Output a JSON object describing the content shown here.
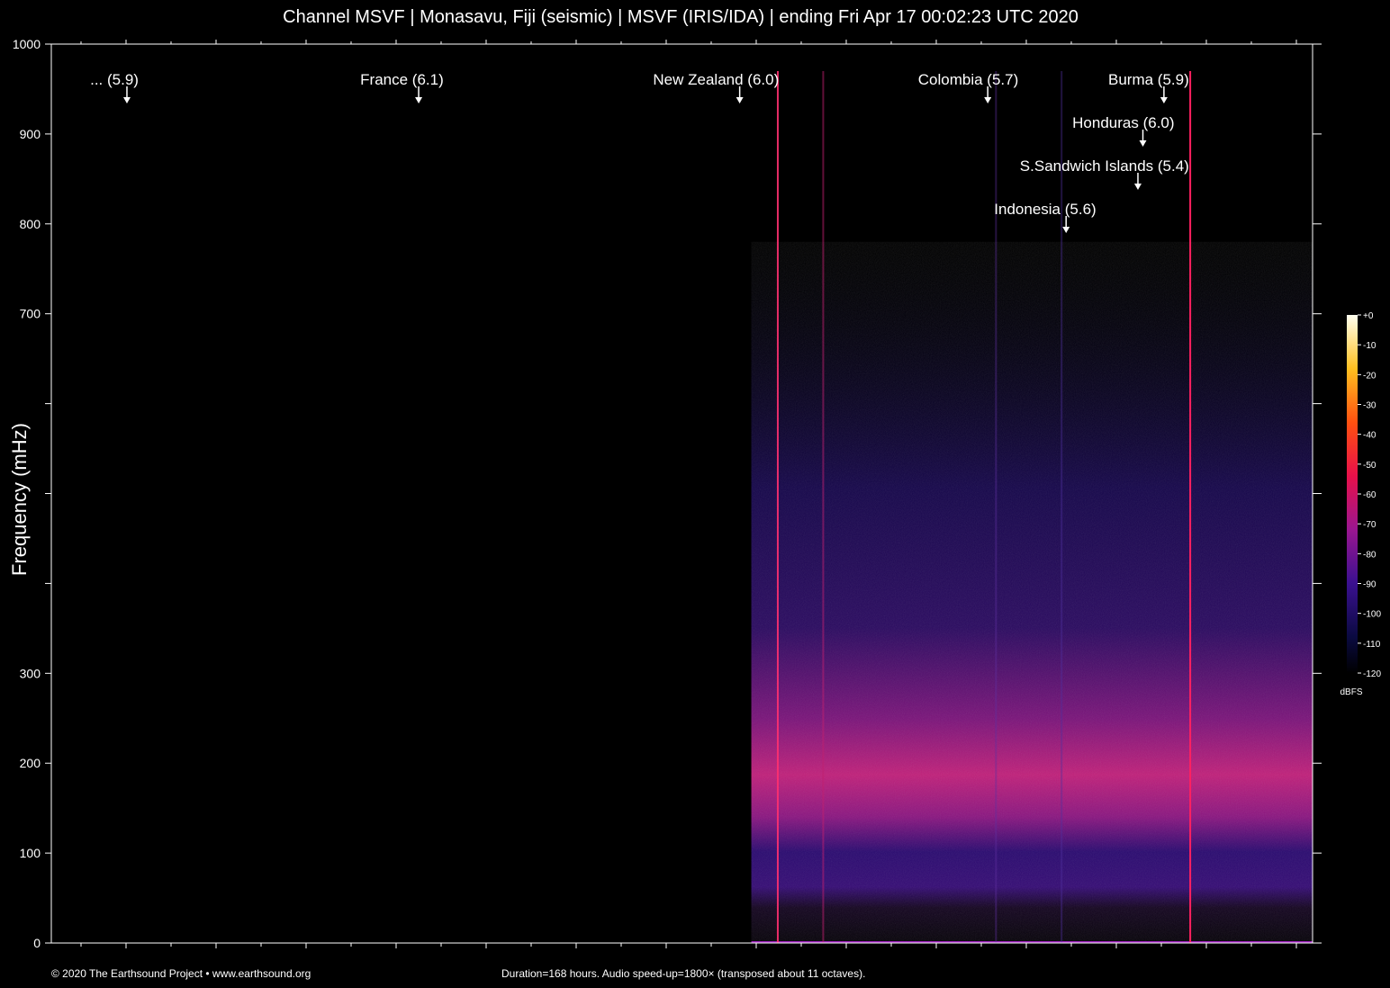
{
  "title": "Channel MSVF | Monasavu, Fiji (seismic) | MSVF (IRIS/IDA) | ending Fri Apr 17 00:02:23 UTC 2020",
  "ylabel": "Frequency (mHz)",
  "footer": {
    "copyright": "© 2020 The Earthsound Project • www.earthsound.org",
    "info": "Duration=168 hours. Audio speed-up=1800× (transposed about 11 octaves)."
  },
  "colors": {
    "background": "#000000",
    "axis": "#ffffff",
    "noise_band": "#d0207a",
    "low": "#1a0a60"
  },
  "chart_data": {
    "type": "heatmap",
    "title": "Channel MSVF | Monasavu, Fiji (seismic) | MSVF (IRIS/IDA) | ending Fri Apr 17 00:02:23 UTC 2020",
    "xlabel": "",
    "ylabel": "Frequency (mHz)",
    "ylim": [
      0,
      1000
    ],
    "y_ticks": [
      0,
      100,
      200,
      300,
      null,
      null,
      null,
      700,
      800,
      900,
      1000
    ],
    "y_tick_labels": [
      "0",
      "100",
      "200",
      "300",
      "700",
      "800",
      "900",
      "1000"
    ],
    "duration_hours": 168,
    "data_start_fraction": 0.555,
    "colorbar": {
      "label": "dBFS",
      "ticks": [
        "+0",
        "-10",
        "-20",
        "-30",
        "-40",
        "-50",
        "-60",
        "-70",
        "-80",
        "-90",
        "-100",
        "-110",
        "-120"
      ],
      "range": [
        -120,
        0
      ]
    },
    "events": [
      {
        "label": "... (5.9)",
        "x_fraction": 0.05,
        "row": 0
      },
      {
        "label": "France (6.1)",
        "x_fraction": 0.278,
        "row": 0
      },
      {
        "label": "New Zealand (6.0)",
        "x_fraction": 0.527,
        "row": 0
      },
      {
        "label": "Colombia (5.7)",
        "x_fraction": 0.727,
        "row": 0
      },
      {
        "label": "Burma (5.9)",
        "x_fraction": 0.87,
        "row": 0
      },
      {
        "label": "Honduras (6.0)",
        "x_fraction": 0.85,
        "row": 1
      },
      {
        "label": "S.Sandwich Islands (5.4)",
        "x_fraction": 0.835,
        "row": 2
      },
      {
        "label": "Indonesia (5.6)",
        "x_fraction": 0.788,
        "row": 3
      }
    ],
    "spectral_lines": [
      {
        "x_fraction": 0.576,
        "color": "#ff3070",
        "strength": 0.9
      },
      {
        "x_fraction": 0.612,
        "color": "#c02070",
        "strength": 0.5
      },
      {
        "x_fraction": 0.749,
        "color": "#6030a0",
        "strength": 0.4
      },
      {
        "x_fraction": 0.801,
        "color": "#5030a0",
        "strength": 0.4
      },
      {
        "x_fraction": 0.903,
        "color": "#ff2060",
        "strength": 1.0
      }
    ],
    "noise_band_mHz": [
      100,
      280
    ]
  }
}
